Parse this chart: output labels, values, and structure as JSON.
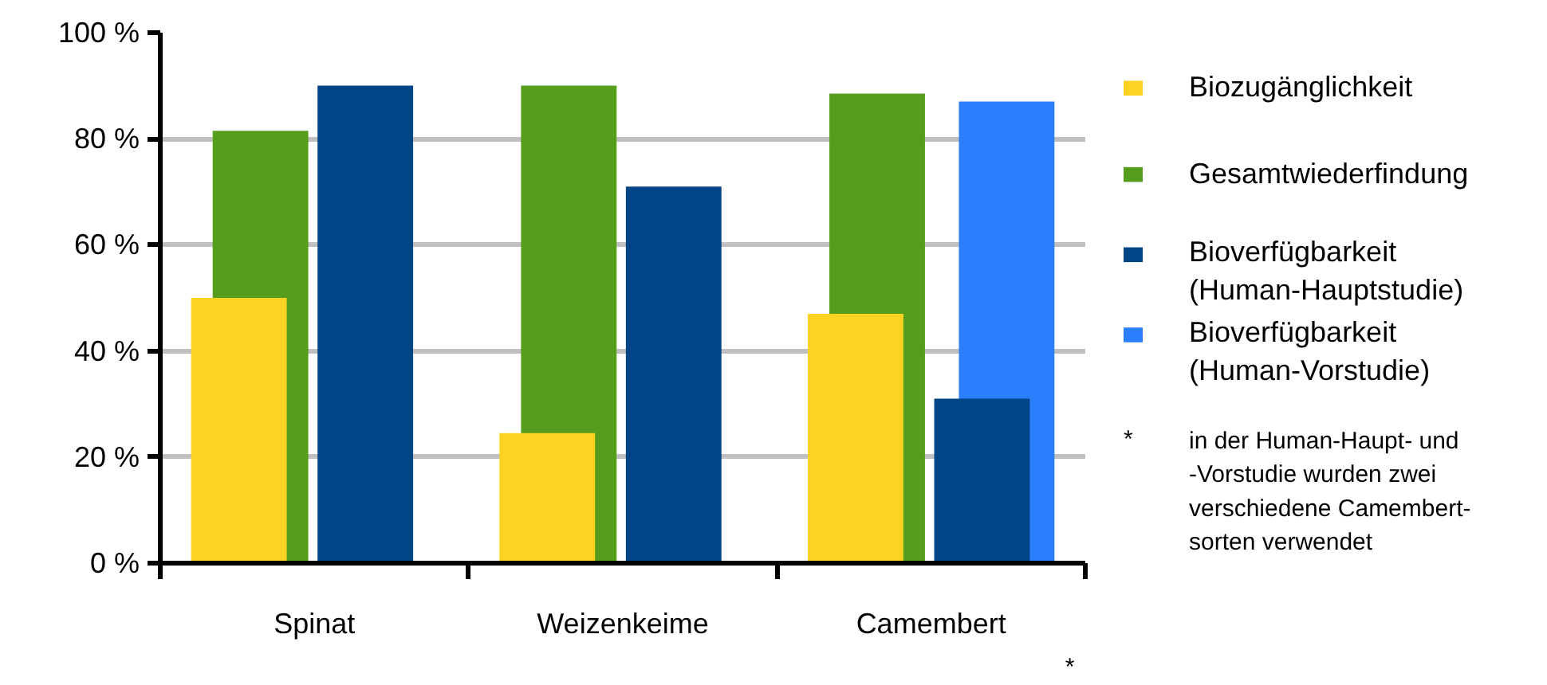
{
  "chart_data": {
    "type": "bar",
    "categories": [
      "Spinat",
      "Weizenkeime",
      "Camembert"
    ],
    "series": [
      {
        "name": "Biozugänglichkeit",
        "color": "#fdd221",
        "values": [
          50,
          24.5,
          47
        ]
      },
      {
        "name": "Gesamtwiederfindung",
        "color": "#569c1d",
        "values": [
          81.5,
          90,
          88.5
        ]
      },
      {
        "name": "Bioverfügbarkeit (Human-Hauptstudie)",
        "color": "#024587",
        "values": [
          90,
          71,
          31
        ]
      },
      {
        "name": "Bioverfügbarkeit (Human-Vorstudie)",
        "color": "#2c7ffc",
        "values": [
          null,
          null,
          87
        ]
      }
    ],
    "ylim": [
      0,
      100
    ],
    "yticks": [
      {
        "value": 0,
        "label": "0 %"
      },
      {
        "value": 20,
        "label": "20 %"
      },
      {
        "value": 40,
        "label": "40 %"
      },
      {
        "value": 60,
        "label": "60 %"
      },
      {
        "value": 80,
        "label": "80 %"
      },
      {
        "value": 100,
        "label": "100 %"
      }
    ],
    "grid": "y",
    "legend": "right",
    "annotations": [
      "*",
      "in der Human-Haupt- und -Vorstudie wurden zwei verschiedene Camembert-sorten verwendet"
    ]
  }
}
